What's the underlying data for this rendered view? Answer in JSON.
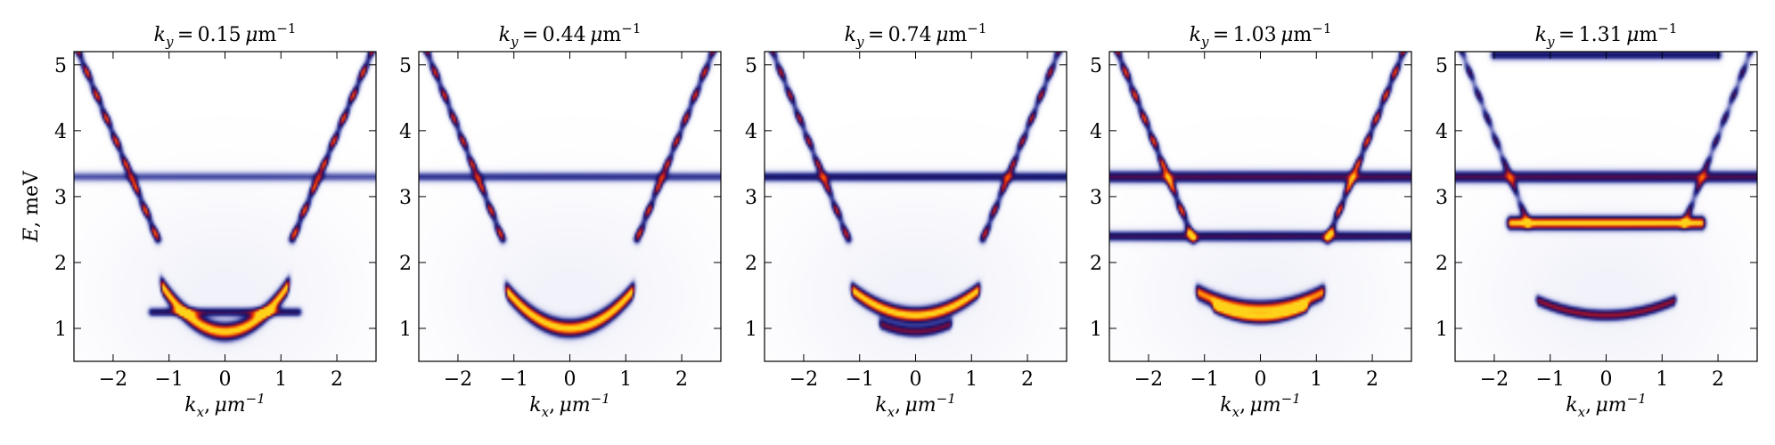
{
  "chart_data": {
    "type": "heatmap",
    "figure_description": "Five-panel intensity map of energy vs in-plane momentum",
    "shared": {
      "xlabel": "k_x, μm⁻¹",
      "ylabel": "E, meV",
      "xlim": [
        -2.7,
        2.7
      ],
      "ylim": [
        0.5,
        5.2
      ],
      "xticks": [
        -2,
        -1,
        0,
        1,
        2
      ],
      "yticks": [
        1,
        2,
        3,
        4,
        5
      ],
      "colormap": [
        "#ffffff",
        "#e3e4f4",
        "#9da2d6",
        "#3a3f9c",
        "#14146a",
        "#5a0a4a",
        "#c41a1a",
        "#ff5a00",
        "#ffd21a"
      ]
    },
    "panels": [
      {
        "title": "k_y = 0.15 μm⁻¹",
        "bands": [
          {
            "kind": "parabola",
            "center": 0,
            "min": 0.95,
            "curv": 0.55,
            "x_range": [
              -1.1,
              1.1
            ],
            "intensity": 1.0,
            "width": 0.09
          },
          {
            "kind": "vbranch",
            "side": "left",
            "vertex_x": -1.2,
            "vertex_E": 2.35,
            "slope": 2.0,
            "E_max": 5.3,
            "intensity": 0.85,
            "width": 0.05
          },
          {
            "kind": "vbranch",
            "side": "right",
            "vertex_x": 1.2,
            "vertex_E": 2.35,
            "slope": 2.0,
            "E_max": 5.3,
            "intensity": 0.85,
            "width": 0.05
          },
          {
            "kind": "flat",
            "E": 3.3,
            "x_range": [
              -2.7,
              2.7
            ],
            "intensity": 0.35,
            "width": 0.06
          },
          {
            "kind": "flat",
            "E": 1.25,
            "x_range": [
              -1.3,
              1.3
            ],
            "intensity": 0.5,
            "width": 0.05
          }
        ]
      },
      {
        "title": "k_y = 0.44 μm⁻¹",
        "bands": [
          {
            "kind": "parabola",
            "center": 0,
            "min": 1.0,
            "curv": 0.45,
            "x_range": [
              -1.1,
              1.1
            ],
            "intensity": 1.0,
            "width": 0.09
          },
          {
            "kind": "vbranch",
            "side": "left",
            "vertex_x": -1.2,
            "vertex_E": 2.35,
            "slope": 2.1,
            "E_max": 5.3,
            "intensity": 0.8,
            "width": 0.05
          },
          {
            "kind": "vbranch",
            "side": "right",
            "vertex_x": 1.2,
            "vertex_E": 2.35,
            "slope": 2.1,
            "E_max": 5.3,
            "intensity": 0.8,
            "width": 0.05
          },
          {
            "kind": "flat",
            "E": 3.3,
            "x_range": [
              -2.7,
              2.7
            ],
            "intensity": 0.4,
            "width": 0.06
          }
        ]
      },
      {
        "title": "k_y = 0.74 μm⁻¹",
        "bands": [
          {
            "kind": "parabola",
            "center": 0,
            "min": 1.2,
            "curv": 0.3,
            "x_range": [
              -1.1,
              1.1
            ],
            "intensity": 1.0,
            "width": 0.08
          },
          {
            "kind": "parabola",
            "center": 0,
            "min": 0.95,
            "curv": 0.3,
            "x_range": [
              -0.6,
              0.6
            ],
            "intensity": 0.6,
            "width": 0.06
          },
          {
            "kind": "vbranch",
            "side": "left",
            "vertex_x": -1.2,
            "vertex_E": 2.35,
            "slope": 2.1,
            "E_max": 5.3,
            "intensity": 0.75,
            "width": 0.05
          },
          {
            "kind": "vbranch",
            "side": "right",
            "vertex_x": 1.2,
            "vertex_E": 2.35,
            "slope": 2.1,
            "E_max": 5.3,
            "intensity": 0.75,
            "width": 0.05
          },
          {
            "kind": "flat",
            "E": 3.3,
            "x_range": [
              -2.7,
              2.7
            ],
            "intensity": 0.5,
            "width": 0.06
          }
        ]
      },
      {
        "title": "k_y = 1.03 μm⁻¹",
        "bands": [
          {
            "kind": "parabola",
            "center": 0,
            "min": 1.3,
            "curv": 0.2,
            "x_range": [
              -1.1,
              1.1
            ],
            "intensity": 0.9,
            "width": 0.08
          },
          {
            "kind": "parabola",
            "center": 0,
            "min": 1.15,
            "curv": 0.25,
            "x_range": [
              -0.8,
              0.8
            ],
            "intensity": 0.75,
            "width": 0.06
          },
          {
            "kind": "vbranch",
            "side": "left",
            "vertex_x": -1.2,
            "vertex_E": 2.35,
            "slope": 2.1,
            "E_max": 5.3,
            "intensity": 0.85,
            "width": 0.05
          },
          {
            "kind": "vbranch",
            "side": "right",
            "vertex_x": 1.2,
            "vertex_E": 2.35,
            "slope": 2.1,
            "E_max": 5.3,
            "intensity": 0.85,
            "width": 0.05
          },
          {
            "kind": "flat",
            "E": 3.3,
            "x_range": [
              -2.7,
              2.7
            ],
            "intensity": 0.6,
            "width": 0.07
          },
          {
            "kind": "flat",
            "E": 2.4,
            "x_range": [
              -2.7,
              2.7
            ],
            "intensity": 0.55,
            "width": 0.06
          }
        ]
      },
      {
        "title": "k_y = 1.31 μm⁻¹",
        "bands": [
          {
            "kind": "flat",
            "E": 2.6,
            "x_range": [
              -1.7,
              1.7
            ],
            "intensity": 1.0,
            "width": 0.07
          },
          {
            "kind": "flat",
            "E": 3.3,
            "x_range": [
              -2.7,
              2.7
            ],
            "intensity": 0.6,
            "width": 0.07
          },
          {
            "kind": "parabola",
            "center": 0,
            "min": 1.2,
            "curv": 0.15,
            "x_range": [
              -1.2,
              1.2
            ],
            "intensity": 0.65,
            "width": 0.06
          },
          {
            "kind": "vbranch",
            "side": "left",
            "vertex_x": -1.4,
            "vertex_E": 2.6,
            "slope": 2.2,
            "E_max": 5.3,
            "intensity": 0.6,
            "width": 0.05
          },
          {
            "kind": "vbranch",
            "side": "right",
            "vertex_x": 1.4,
            "vertex_E": 2.6,
            "slope": 2.2,
            "E_max": 5.3,
            "intensity": 0.6,
            "width": 0.05
          },
          {
            "kind": "flat",
            "E": 5.15,
            "x_range": [
              -2.0,
              2.0
            ],
            "intensity": 0.5,
            "width": 0.06
          }
        ]
      }
    ]
  }
}
